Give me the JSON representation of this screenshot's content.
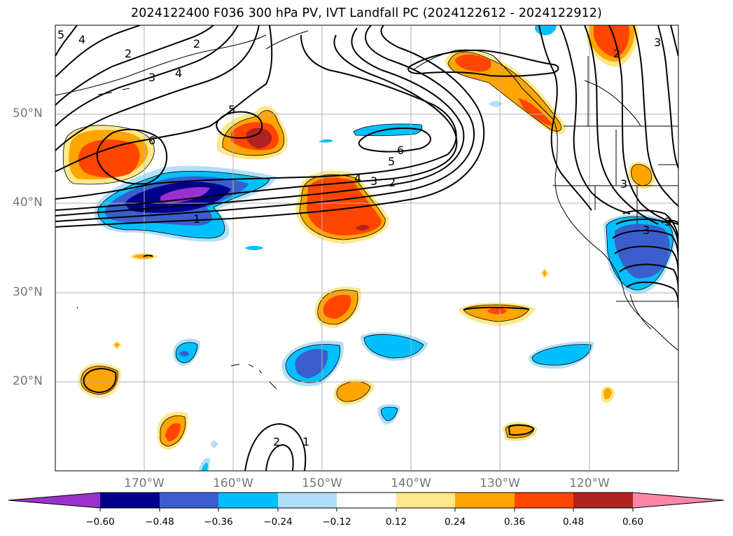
{
  "title": "2024122400 F036 300 hPa PV, IVT Landfall PC (2024122612 - 2024122912)",
  "map": {
    "projection": "equirectangular",
    "lon_range": [
      -180,
      -110
    ],
    "lat_range": [
      10,
      60
    ],
    "grid": true,
    "lat_labels": [
      "50°N",
      "40°N",
      "30°N",
      "20°N"
    ],
    "lon_labels": [
      "170°W",
      "160°W",
      "150°W",
      "140°W",
      "130°W",
      "120°W"
    ],
    "contour_labels": [
      "5",
      "4",
      "2",
      "2",
      "3",
      "4",
      "5",
      "6",
      "6",
      "5",
      "4",
      "3",
      "2",
      "1",
      "2",
      "1",
      "3",
      "3",
      "3",
      "2",
      "3"
    ]
  },
  "colorbar": {
    "ticks": [
      "−0.60",
      "−0.48",
      "−0.36",
      "−0.24",
      "−0.12",
      "0.12",
      "0.24",
      "0.36",
      "0.48",
      "0.60"
    ],
    "colors": [
      "#9932cc",
      "#00008b",
      "#3a5fcd",
      "#00bfff",
      "#b0e0f8",
      "#ffffff",
      "#ffe88a",
      "#ffa500",
      "#ff4500",
      "#b22222",
      "#ff86a8"
    ]
  }
}
